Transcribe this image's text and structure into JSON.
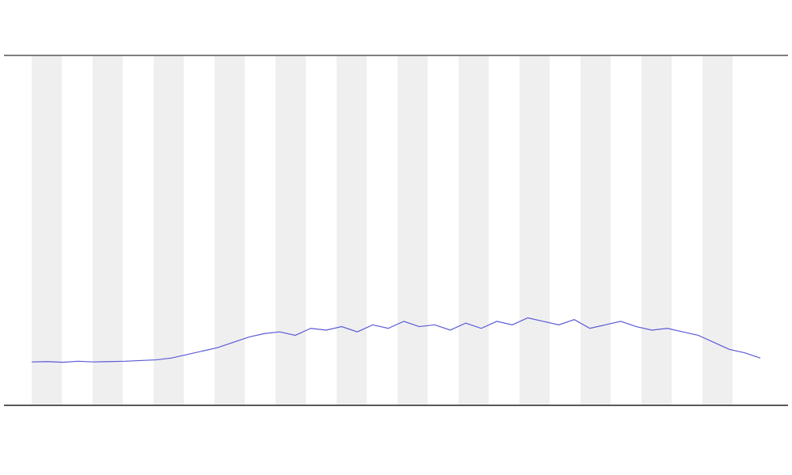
{
  "chart_data": {
    "type": "line",
    "x": [
      0,
      1,
      2,
      3,
      4,
      5,
      6,
      7,
      8,
      9,
      10,
      11,
      12,
      13,
      14,
      15,
      16,
      17,
      18,
      19,
      20,
      21,
      22,
      23,
      24,
      25,
      26,
      27,
      28,
      29,
      30,
      31,
      32,
      33,
      34,
      35,
      36,
      37,
      38,
      39,
      40,
      41,
      42,
      43,
      44,
      45,
      46,
      47
    ],
    "series": [
      {
        "color": "#5a5ad8",
        "values": [
          12.4,
          12.5,
          12.3,
          12.6,
          12.4,
          12.5,
          12.6,
          12.8,
          13.0,
          13.5,
          14.5,
          15.5,
          16.5,
          18.0,
          19.5,
          20.5,
          21,
          20,
          22,
          21.5,
          22.5,
          21,
          23,
          22,
          24,
          22.5,
          23,
          21.5,
          23.5,
          22,
          24,
          23,
          25,
          24,
          23,
          24.5,
          22,
          23,
          24,
          22.5,
          21.5,
          22,
          21,
          20,
          18,
          16,
          15,
          13.5
        ]
      }
    ],
    "xlim": [
      0,
      47
    ],
    "ylim": [
      0,
      100
    ],
    "grid": false
  }
}
